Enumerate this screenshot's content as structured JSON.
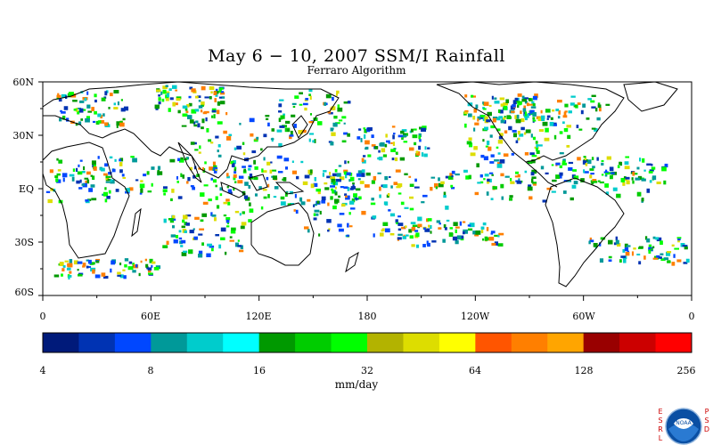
{
  "title": "May 6 − 10, 2007 SSM/I Rainfall",
  "subtitle": "Ferraro Algorithm",
  "lat_labels": [
    "60N",
    "30N",
    "EQ",
    "30S",
    "60S"
  ],
  "lon_labels": [
    "0",
    "60E",
    "120E",
    "180",
    "120W",
    "60W",
    "0"
  ],
  "colorbar": {
    "ticks": [
      "4",
      "8",
      "16",
      "32",
      "64",
      "128",
      "256"
    ],
    "units": "mm/day",
    "colors": [
      "#001a7a",
      "#0033b3",
      "#0047ff",
      "#009999",
      "#00cccc",
      "#00ffff",
      "#009900",
      "#00cc00",
      "#00ff00",
      "#b3b300",
      "#dddd00",
      "#ffff00",
      "#ff5500",
      "#ff7f00",
      "#ffa500",
      "#990000",
      "#cc0000",
      "#ff0000"
    ]
  },
  "logo": {
    "left_text": "ESRL",
    "right_text": "PSD",
    "badge_text": "NOAA"
  }
}
